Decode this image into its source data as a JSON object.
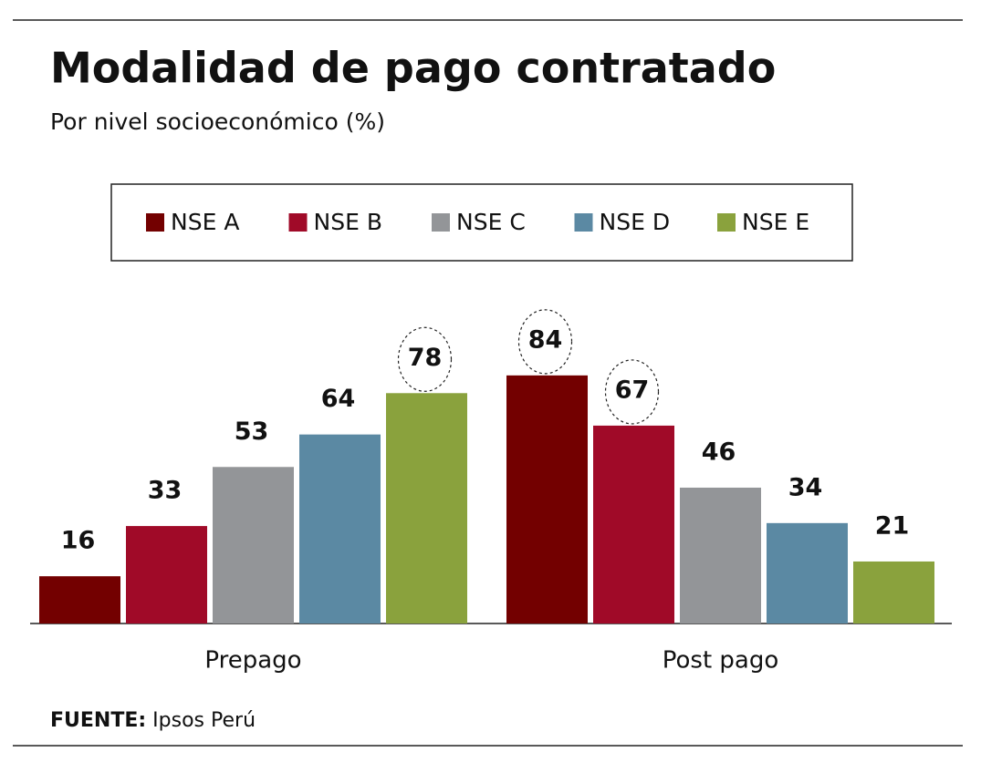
{
  "chart_data": {
    "type": "bar",
    "title": "Modalidad de pago contratado",
    "subtitle": "Por nivel socioeconómico (%)",
    "categories": [
      "Prepago",
      "Post pago"
    ],
    "series": [
      {
        "name": "NSE A",
        "color": "#730000",
        "values": [
          16,
          84
        ],
        "highlight": [
          false,
          true
        ]
      },
      {
        "name": "NSE B",
        "color": "#a00a28",
        "values": [
          33,
          67
        ],
        "highlight": [
          false,
          true
        ]
      },
      {
        "name": "NSE C",
        "color": "#939598",
        "values": [
          53,
          46
        ],
        "highlight": [
          false,
          false
        ]
      },
      {
        "name": "NSE D",
        "color": "#5b89a3",
        "values": [
          64,
          34
        ],
        "highlight": [
          false,
          false
        ]
      },
      {
        "name": "NSE E",
        "color": "#8aa23d",
        "values": [
          78,
          21
        ],
        "highlight": [
          true,
          false
        ]
      }
    ],
    "ylim": [
      0,
      100
    ],
    "legend": "top",
    "source": {
      "label": "FUENTE:",
      "text": "Ipsos Perú"
    }
  }
}
